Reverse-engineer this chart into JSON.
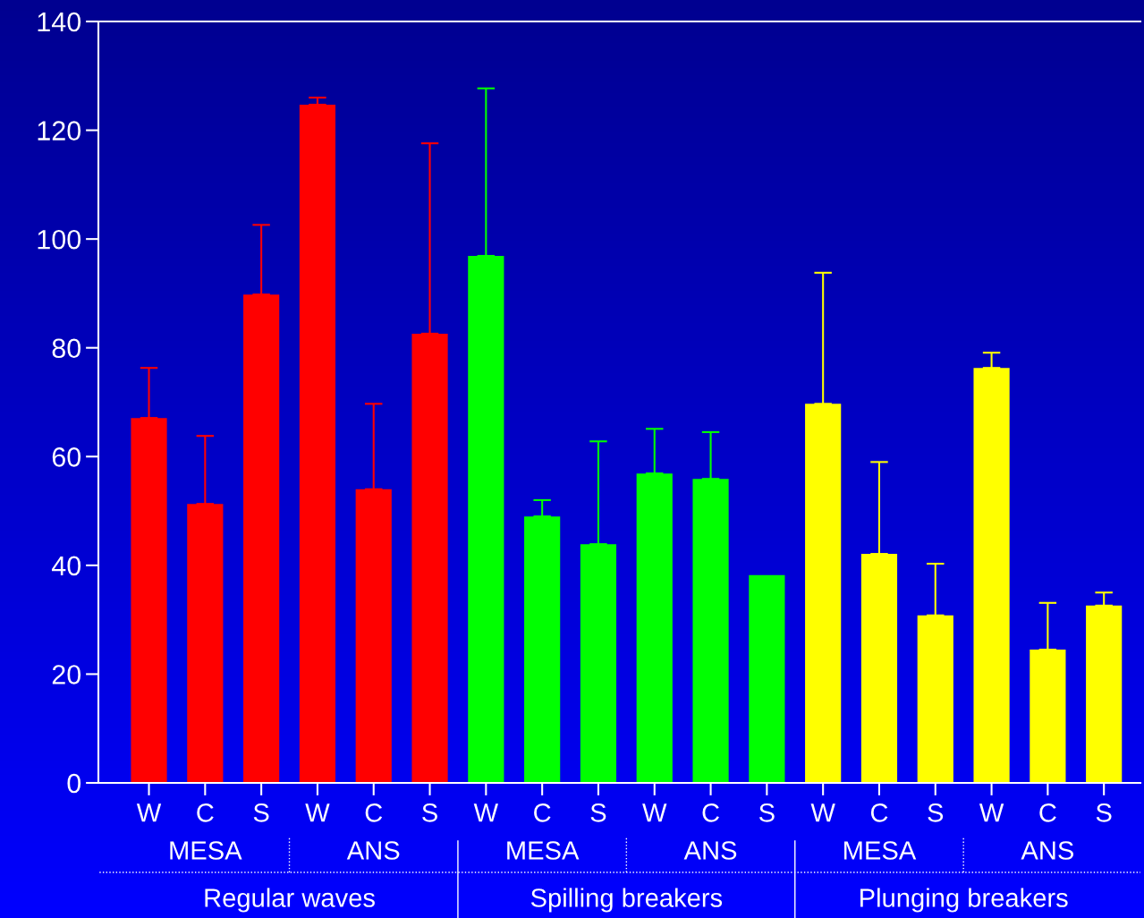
{
  "chart_data": {
    "type": "bar",
    "categories": [
      "W",
      "C",
      "S",
      "W",
      "C",
      "S",
      "W",
      "C",
      "S",
      "W",
      "C",
      "S",
      "W",
      "C",
      "S",
      "W",
      "C",
      "S"
    ],
    "values": [
      67.1,
      51.3,
      89.8,
      124.7,
      54.0,
      82.6,
      96.9,
      49.0,
      43.9,
      56.9,
      55.9,
      38.2,
      69.7,
      42.1,
      30.8,
      76.3,
      24.5,
      32.6
    ],
    "colors": [
      "#ff0000",
      "#ff0000",
      "#ff0000",
      "#ff0000",
      "#ff0000",
      "#ff0000",
      "#00ff00",
      "#00ff00",
      "#00ff00",
      "#00ff00",
      "#00ff00",
      "#00ff00",
      "#ffff00",
      "#ffff00",
      "#ffff00",
      "#ffff00",
      "#ffff00",
      "#ffff00"
    ],
    "errors": [
      [
        67.1,
        76.3
      ],
      [
        51.3,
        63.8
      ],
      [
        89.8,
        102.6
      ],
      [
        124.7,
        126.0
      ],
      [
        54.0,
        69.7
      ],
      [
        82.6,
        117.6
      ],
      [
        96.9,
        127.7
      ],
      [
        49.0,
        52.0
      ],
      [
        43.9,
        62.8
      ],
      [
        56.9,
        65.1
      ],
      [
        55.9,
        64.5
      ],
      null,
      [
        69.7,
        93.8
      ],
      [
        42.1,
        59.0
      ],
      [
        30.8,
        40.3
      ],
      [
        76.3,
        79.1
      ],
      [
        24.5,
        33.1
      ],
      [
        32.6,
        35.0
      ]
    ],
    "ylim": [
      0,
      140
    ],
    "yticks": [
      0,
      20,
      40,
      60,
      80,
      100,
      120,
      140
    ],
    "grid": false,
    "annotations": [
      "MESA",
      "ANS",
      "MESA",
      "ANS",
      "MESA",
      "ANS",
      "Regular waves",
      "Spilling breakers",
      "Plunging breakers"
    ]
  }
}
